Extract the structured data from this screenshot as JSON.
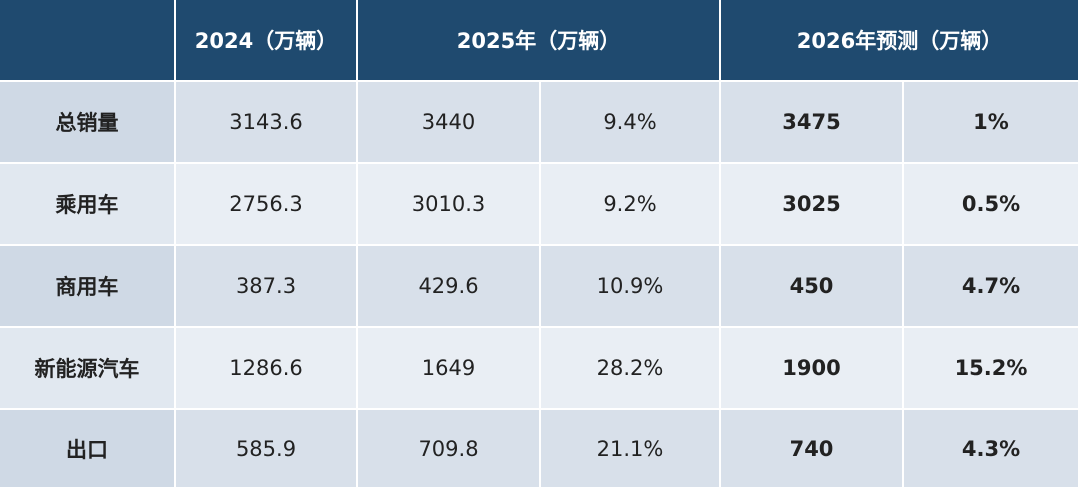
{
  "table": {
    "header": [
      "2024（万辆）",
      "2025年（万辆）",
      "2026年预测（万辆）"
    ],
    "rows": [
      [
        "总销量",
        "3143.6",
        "3440",
        "9.4%",
        "3475",
        "1%"
      ],
      [
        "乘用车",
        "2756.3",
        "3010.3",
        "9.2%",
        "3025",
        "0.5%"
      ],
      [
        "商用车",
        "387.3",
        "429.6",
        "10.9%",
        "450",
        "4.7%"
      ],
      [
        "新能源汽车",
        "1286.6",
        "1649",
        "28.2%",
        "1900",
        "15.2%"
      ],
      [
        "出口",
        "585.9",
        "709.8",
        "21.1%",
        "740",
        "4.3%"
      ]
    ]
  }
}
